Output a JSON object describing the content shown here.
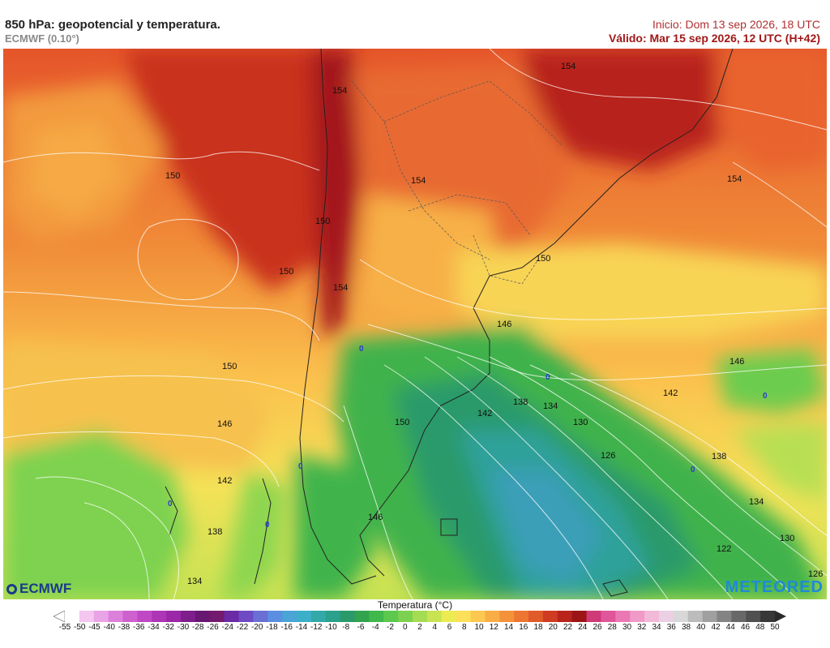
{
  "header": {
    "title": "850 hPa: geopotencial y temperatura.",
    "subtitle": "ECMWF (0.10°)",
    "init": "Inicio: Dom 13 sep 2026, 18 UTC",
    "valid": "Válido: Mar 15 sep 2026, 12 UTC (H+42)"
  },
  "logos": {
    "left": "ECMWF",
    "right": "METEORED"
  },
  "legend": {
    "title": "Temperatura (°C)",
    "ticks": [
      "-55",
      "-50",
      "-45",
      "-40",
      "-38",
      "-36",
      "-34",
      "-32",
      "-30",
      "-28",
      "-26",
      "-24",
      "-22",
      "-20",
      "-18",
      "-16",
      "-14",
      "-12",
      "-10",
      "-8",
      "-6",
      "-4",
      "-2",
      "0",
      "2",
      "4",
      "6",
      "8",
      "10",
      "12",
      "14",
      "16",
      "18",
      "20",
      "22",
      "24",
      "26",
      "28",
      "30",
      "32",
      "34",
      "36",
      "38",
      "40",
      "42",
      "44",
      "46",
      "48",
      "50"
    ],
    "colors": [
      "#ffffff",
      "#f4c6f0",
      "#e9a3e6",
      "#dd80db",
      "#cf60cf",
      "#c048c4",
      "#ae35b6",
      "#9a28a8",
      "#7e1e8c",
      "#681873",
      "#731a6e",
      "#6b2aa6",
      "#6e4ac4",
      "#6a6fd6",
      "#5b8ee0",
      "#4aa4d6",
      "#3cb0c8",
      "#32a8a8",
      "#2ba08c",
      "#2a9a6a",
      "#33a44e",
      "#40b84c",
      "#5cc84e",
      "#7cd24e",
      "#a4dc52",
      "#c8e452",
      "#ecec52",
      "#fde05a",
      "#fcc850",
      "#f9ae45",
      "#f4923a",
      "#ec7632",
      "#e05a2a",
      "#cf3c22",
      "#b8241c",
      "#9c1416",
      "#d03a78",
      "#e0569a",
      "#ea78b4",
      "#f09ac8",
      "#f2b8d8",
      "#ead0e2",
      "#d8d8d8",
      "#bcbcbc",
      "#a0a0a0",
      "#848484",
      "#686868",
      "#505050",
      "#383838"
    ]
  },
  "map": {
    "contour_labels": [
      "154",
      "154",
      "154",
      "150",
      "154",
      "150",
      "150",
      "154",
      "150",
      "146",
      "150",
      "146",
      "142",
      "146",
      "150",
      "142",
      "138",
      "134",
      "130",
      "126",
      "138",
      "146",
      "134",
      "142",
      "138",
      "130",
      "122",
      "134",
      "126"
    ],
    "zero_labels": [
      "0",
      "0",
      "0",
      "0",
      "0",
      "0",
      "0"
    ]
  }
}
